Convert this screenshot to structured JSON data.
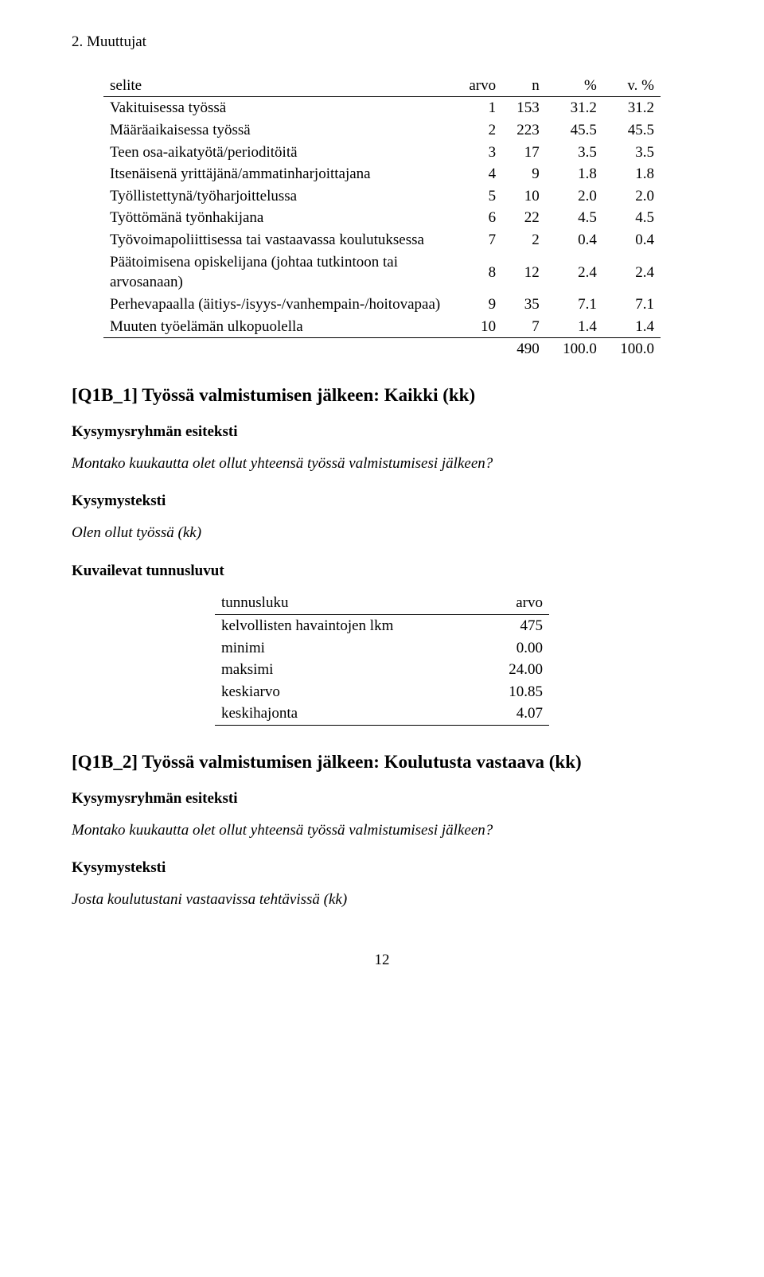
{
  "top_header": "2. Muuttujat",
  "table1": {
    "head": [
      "selite",
      "arvo",
      "n",
      "%",
      "v. %"
    ],
    "rows": [
      [
        "Vakituisessa työssä",
        "1",
        "153",
        "31.2",
        "31.2"
      ],
      [
        "Määräaikaisessa työssä",
        "2",
        "223",
        "45.5",
        "45.5"
      ],
      [
        "Teen osa-aikatyötä/perioditöitä",
        "3",
        "17",
        "3.5",
        "3.5"
      ],
      [
        "Itsenäisenä yrittäjänä/ammatinharjoittajana",
        "4",
        "9",
        "1.8",
        "1.8"
      ],
      [
        "Työllistettynä/työharjoittelussa",
        "5",
        "10",
        "2.0",
        "2.0"
      ],
      [
        "Työttömänä työnhakijana",
        "6",
        "22",
        "4.5",
        "4.5"
      ],
      [
        "Työvoimapoliittisessa tai vastaavassa koulutuksessa",
        "7",
        "2",
        "0.4",
        "0.4"
      ],
      [
        "Päätoimisena opiskelijana (johtaa tutkintoon tai arvosanaan)",
        "8",
        "12",
        "2.4",
        "2.4"
      ],
      [
        "Perhevapaalla (äitiys-/isyys-/vanhempain-/hoitovapaa)",
        "9",
        "35",
        "7.1",
        "7.1"
      ],
      [
        "Muuten työelämän ulkopuolella",
        "10",
        "7",
        "1.4",
        "1.4"
      ]
    ],
    "total": [
      "",
      "",
      "490",
      "100.0",
      "100.0"
    ]
  },
  "section1": {
    "title": "[Q1B_1] Työssä valmistumisen jälkeen: Kaikki (kk)",
    "group_label": "Kysymysryhmän esiteksti",
    "group_text": "Montako kuukautta olet ollut yhteensä työssä valmistumisesi jälkeen?",
    "q_label": "Kysymysteksti",
    "q_text": "Olen ollut työssä (kk)",
    "stats_label": "Kuvailevat tunnusluvut"
  },
  "table2": {
    "head": [
      "tunnusluku",
      "arvo"
    ],
    "rows": [
      [
        "kelvollisten havaintojen lkm",
        "475"
      ],
      [
        "minimi",
        "0.00"
      ],
      [
        "maksimi",
        "24.00"
      ],
      [
        "keskiarvo",
        "10.85"
      ],
      [
        "keskihajonta",
        "4.07"
      ]
    ]
  },
  "section2": {
    "title": "[Q1B_2] Työssä valmistumisen jälkeen: Koulutusta vastaava (kk)",
    "group_label": "Kysymysryhmän esiteksti",
    "group_text": "Montako kuukautta olet ollut yhteensä työssä valmistumisesi jälkeen?",
    "q_label": "Kysymysteksti",
    "q_text": "Josta koulutustani vastaavissa tehtävissä (kk)"
  },
  "page_number": "12"
}
